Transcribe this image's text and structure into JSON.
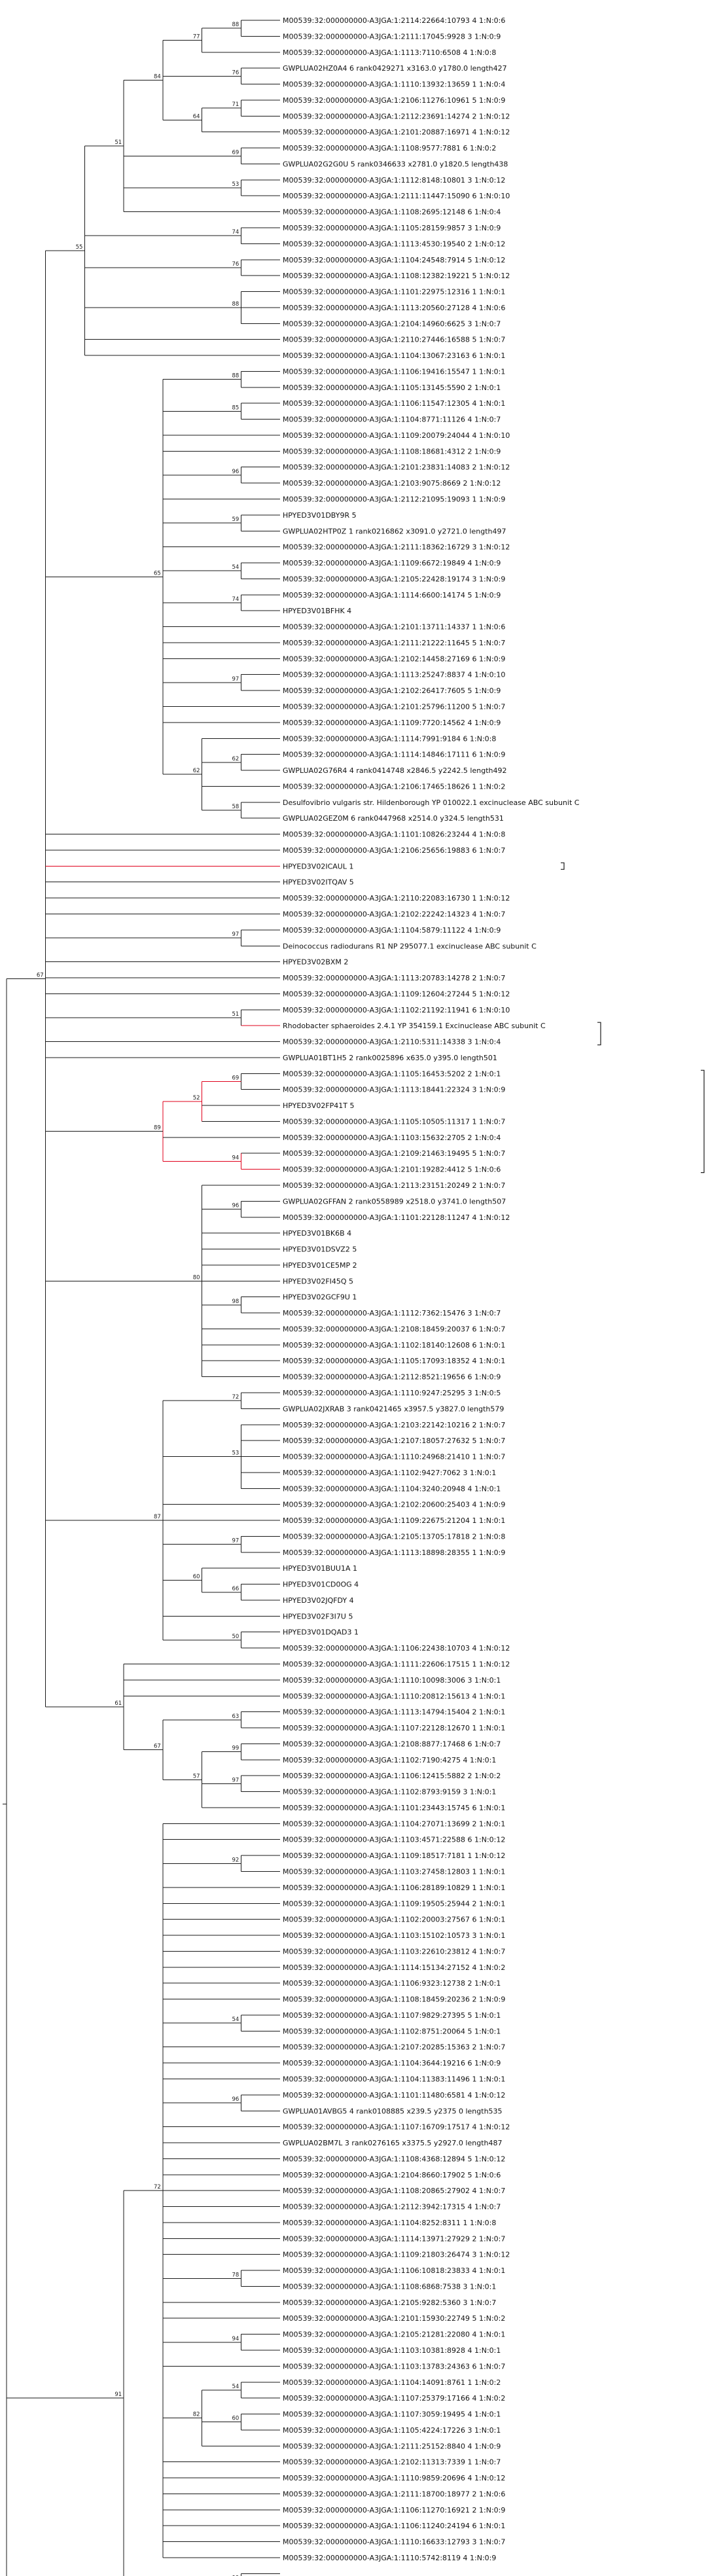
{
  "tree": {
    "newick": "(((((((((((M0:1,M1:1)88:1,M2:2)77:1,(GWPLUA02HZ0A4:1)76:1,((M3:1,M4:1)71:1,M5:1)64:1)84:1,(M6:1,GWPLUA02G2G0U:1)69:1,(M7:1,M8:1)53:1,M9:1)51:1,((M10:1,M11:1)74:1,(M12:1,M13:1)76:1,M14:1,(M15:1,M16:1,M17:1)88:1,M18:1,M19:1)55:1,(M20:1,M21:1,(M22:1,M23:1)88:1,(M24:1,M25:1)85:1,M26:1,M27:1,(M28:1,M29:1)96:1,M30:1,(M31:1,M32:1)59:1,M33:1,(M34:1,HPYED3V01DBY9R:1)54:1,(GWPLUA02HTP0Z:1,M35:1)74:1,M36:1,M37:1,HPYED3V01BFHK4:1,M38:1,(M39:1,M40:1)97:1,M41:1,M42:1,(M43:1,(M44:1,M45:1)62:1,M46:1,(M47:1,M48:1)58:1)62:1)65:1,GWPLUA02G76R4:1,M49:1,Desulfovibrio:1,GWPLUA02GEZ0M:1,M50:1,M51:1,(HPYED3V02ICAUL:1,HPYED3V02ITQAV:1)97:1,M52:1,M53:1,(M54:1,Deinococcus:1)51:1,HPYED3V02BXM2:1,M55:1,M56:1,(((M57:1,Rhodobacter:1)69:1,M58:1,GWPLUA01BT1H5:1)52:1,M59:1,(M60:1,HPYED3V02FP41T:1)94:1)89:1,(M61:1,(M62:1,M63:1)96:1,M64:1,M65:1,M66:1,GWPLUA02GFFAN:1,(M67:1,HPYED3V01BK6B:1)98:1,HPYED3V01DSVZ2:1,HPYED3V01CE5MP:1,HPYED3V02FI45Q:1,HPYED3V02GCF9U:1)80:1,((M68:1,M69:1)72:1,(M70:1,M71:1,M72:1,M73:1,M74:1)53:1,GWPLUA02JXRAB:1,M75:1,M76:1,(M77:1,M78:1)97:1,(M79:1,(M80:1,M81:1)66:1)60:1,M82:1,M83:1,(M84:1,M85:1)50:1)87:1,(M86:1,HPYED3V01BUU1A:1,HPYED3V01CD0OG:1,HPYED3V02JQFDY:1,(HPYED3V02F3I7U:1,HPYED3V01DQAD3:1)63:1)61:1)67:1",
    "edges_note": "tree topology summarized; see rows/brackets"
  },
  "labels": [
    "M00539:32:000000000-A3JGA:1:2114:22664:10793 4 1:N:0:6",
    "M00539:32:000000000-A3JGA:1:2111:17045:9928 3 1:N:0:9",
    "M00539:32:000000000-A3JGA:1:1113:7110:6508 4 1:N:0:8",
    "GWPLUA02HZ0A4 6 rank0429271 x3163.0 y1780.0 length427",
    "M00539:32:000000000-A3JGA:1:1110:13932:13659 1 1:N:0:4",
    "M00539:32:000000000-A3JGA:1:2106:11276:10961 5 1:N:0:9",
    "M00539:32:000000000-A3JGA:1:2112:23691:14274 2 1:N:0:12",
    "M00539:32:000000000-A3JGA:1:2101:20887:16971 4 1:N:0:12",
    "M00539:32:000000000-A3JGA:1:1108:9577:7881 6 1:N:0:2",
    "GWPLUA02G2G0U 5 rank0346633 x2781.0 y1820.5 length438",
    "M00539:32:000000000-A3JGA:1:1112:8148:10801 3 1:N:0:12",
    "M00539:32:000000000-A3JGA:1:2111:11447:15090 6 1:N:0:10",
    "M00539:32:000000000-A3JGA:1:1108:2695:12148 6 1:N:0:4",
    "M00539:32:000000000-A3JGA:1:1105:28159:9857 3 1:N:0:9",
    "M00539:32:000000000-A3JGA:1:1113:4530:19540 2 1:N:0:12",
    "M00539:32:000000000-A3JGA:1:1104:24548:7914 5 1:N:0:12",
    "M00539:32:000000000-A3JGA:1:1108:12382:19221 5 1:N:0:12",
    "M00539:32:000000000-A3JGA:1:1101:22975:12316 1 1:N:0:1",
    "M00539:32:000000000-A3JGA:1:1113:20560:27128 4 1:N:0:6",
    "M00539:32:000000000-A3JGA:1:2104:14960:6625 3 1:N:0:7",
    "M00539:32:000000000-A3JGA:1:2110:27446:16588 5 1:N:0:7",
    "M00539:32:000000000-A3JGA:1:1104:13067:23163 6 1:N:0:1",
    "M00539:32:000000000-A3JGA:1:1106:19416:15547 1 1:N:0:1",
    "M00539:32:000000000-A3JGA:1:1105:13145:5590 2 1:N:0:1",
    "M00539:32:000000000-A3JGA:1:1106:11547:12305 4 1:N:0:1",
    "M00539:32:000000000-A3JGA:1:1104:8771:11126 4 1:N:0:7",
    "M00539:32:000000000-A3JGA:1:1109:20079:24044 4 1:N:0:10",
    "M00539:32:000000000-A3JGA:1:1108:18681:4312 2 1:N:0:9",
    "M00539:32:000000000-A3JGA:1:2101:23831:14083 2 1:N:0:12",
    "M00539:32:000000000-A3JGA:1:2103:9075:8669 2 1:N:0:12",
    "M00539:32:000000000-A3JGA:1:2112:21095:19093 1 1:N:0:9",
    "HPYED3V01DBY9R 5",
    "GWPLUA02HTP0Z 1 rank0216862 x3091.0 y2721.0 length497",
    "M00539:32:000000000-A3JGA:1:2111:18362:16729 3 1:N:0:12",
    "M00539:32:000000000-A3JGA:1:1109:6672:19849 4 1:N:0:9",
    "M00539:32:000000000-A3JGA:1:2105:22428:19174 3 1:N:0:9",
    "M00539:32:000000000-A3JGA:1:1114:6600:14174 5 1:N:0:9",
    "HPYED3V01BFHK 4",
    "M00539:32:000000000-A3JGA:1:2101:13711:14337 1 1:N:0:6",
    "M00539:32:000000000-A3JGA:1:2111:21222:11645 5 1:N:0:7",
    "M00539:32:000000000-A3JGA:1:2102:14458:27169 6 1:N:0:9",
    "M00539:32:000000000-A3JGA:1:1113:25247:8837 4 1:N:0:10",
    "M00539:32:000000000-A3JGA:1:2102:26417:7605 5 1:N:0:9",
    "M00539:32:000000000-A3JGA:1:2101:25796:11200 5 1:N:0:7",
    "M00539:32:000000000-A3JGA:1:1109:7720:14562 4 1:N:0:9",
    "M00539:32:000000000-A3JGA:1:1114:7991:9184 6 1:N:0:8",
    "M00539:32:000000000-A3JGA:1:1114:14846:17111 6 1:N:0:9",
    "GWPLUA02G76R4 4 rank0414748 x2846.5 y2242.5 length492",
    "M00539:32:000000000-A3JGA:1:2106:17465:18626 1 1:N:0:2",
    "Desulfovibrio vulgaris str. Hildenborough YP 010022.1 excinuclease ABC subunit C",
    "GWPLUA02GEZ0M 6 rank0447968 x2514.0 y324.5 length531",
    "M00539:32:000000000-A3JGA:1:1101:10826:23244 4 1:N:0:8",
    "M00539:32:000000000-A3JGA:1:2106:25656:19883 6 1:N:0:7",
    "HPYED3V02ICAUL 1",
    "HPYED3V02ITQAV 5",
    "M00539:32:000000000-A3JGA:1:2110:22083:16730 1 1:N:0:12",
    "M00539:32:000000000-A3JGA:1:2102:22242:14323 4 1:N:0:7",
    "M00539:32:000000000-A3JGA:1:1104:5879:11122 4 1:N:0:9",
    "Deinococcus radiodurans R1 NP 295077.1 excinuclease ABC subunit C",
    "HPYED3V02BXM 2",
    "M00539:32:000000000-A3JGA:1:1113:20783:14278 2 1:N:0:7",
    "M00539:32:000000000-A3JGA:1:1109:12604:27244 5 1:N:0:12",
    "M00539:32:000000000-A3JGA:1:1102:21192:11941 6 1:N:0:10",
    "Rhodobacter sphaeroides 2.4.1 YP 354159.1 Excinuclease ABC subunit C",
    "M00539:32:000000000-A3JGA:1:2110:5311:14338 3 1:N:0:4",
    "GWPLUA01BT1H5 2 rank0025896 x635.0 y395.0 length501",
    "M00539:32:000000000-A3JGA:1:1105:16453:5202 2 1:N:0:1",
    "M00539:32:000000000-A3JGA:1:1113:18441:22324 3 1:N:0:9",
    "HPYED3V02FP41T 5",
    "M00539:32:000000000-A3JGA:1:1105:10505:11317 1 1:N:0:7",
    "M00539:32:000000000-A3JGA:1:1103:15632:2705 2 1:N:0:4",
    "M00539:32:000000000-A3JGA:1:2109:21463:19495 5 1:N:0:7",
    "M00539:32:000000000-A3JGA:1:2101:19282:4412 5 1:N:0:6",
    "M00539:32:000000000-A3JGA:1:2113:23151:20249 2 1:N:0:7",
    "GWPLUA02GFFAN 2 rank0558989 x2518.0 y3741.0 length507",
    "M00539:32:000000000-A3JGA:1:1101:22128:11247 4 1:N:0:12",
    "HPYED3V01BK6B 4",
    "HPYED3V01DSVZ2 5",
    "HPYED3V01CE5MP 2",
    "HPYED3V02FI45Q 5",
    "HPYED3V02GCF9U 1",
    "M00539:32:000000000-A3JGA:1:1112:7362:15476 3 1:N:0:7",
    "M00539:32:000000000-A3JGA:1:2108:18459:20037 6 1:N:0:7",
    "M00539:32:000000000-A3JGA:1:1102:18140:12608 6 1:N:0:1",
    "M00539:32:000000000-A3JGA:1:1105:17093:18352 4 1:N:0:1",
    "M00539:32:000000000-A3JGA:1:2112:8521:19656 6 1:N:0:9",
    "M00539:32:000000000-A3JGA:1:1110:9247:25295 3 1:N:0:5",
    "GWPLUA02JXRAB 3 rank0421465 x3957.5 y3827.0 length579",
    "M00539:32:000000000-A3JGA:1:2103:22142:10216 2 1:N:0:7",
    "M00539:32:000000000-A3JGA:1:2107:18057:27632 5 1:N:0:7",
    "M00539:32:000000000-A3JGA:1:1110:24968:21410 1 1:N:0:7",
    "M00539:32:000000000-A3JGA:1:1102:9427:7062 3 1:N:0:1",
    "M00539:32:000000000-A3JGA:1:1104:3240:20948 4 1:N:0:1",
    "M00539:32:000000000-A3JGA:1:2102:20600:25403 4 1:N:0:9",
    "M00539:32:000000000-A3JGA:1:1109:22675:21204 1 1:N:0:1",
    "M00539:32:000000000-A3JGA:1:2105:13705:17818 2 1:N:0:8",
    "M00539:32:000000000-A3JGA:1:1113:18898:28355 1 1:N:0:9",
    "HPYED3V01BUU1A 1",
    "HPYED3V01CD0OG 4",
    "HPYED3V02JQFDY 4",
    "HPYED3V02F3I7U 5",
    "HPYED3V01DQAD3 1",
    "M00539:32:000000000-A3JGA:1:1106:22438:10703 4 1:N:0:12",
    "M00539:32:000000000-A3JGA:1:1111:22606:17515 1 1:N:0:12",
    "M00539:32:000000000-A3JGA:1:1110:10098:3006 3 1:N:0:1",
    "M00539:32:000000000-A3JGA:1:1110:20812:15613 4 1:N:0:1",
    "M00539:32:000000000-A3JGA:1:1113:14794:15404 2 1:N:0:1",
    "M00539:32:000000000-A3JGA:1:1107:22128:12670 1 1:N:0:1",
    "M00539:32:000000000-A3JGA:1:2108:8877:17468 6 1:N:0:7",
    "M00539:32:000000000-A3JGA:1:1102:7190:4275 4 1:N:0:1",
    "M00539:32:000000000-A3JGA:1:1106:12415:5882 2 1:N:0:2",
    "M00539:32:000000000-A3JGA:1:1102:8793:9159 3 1:N:0:1",
    "M00539:32:000000000-A3JGA:1:1101:23443:15745 6 1:N:0:1",
    "M00539:32:000000000-A3JGA:1:1104:27071:13699 2 1:N:0:1",
    "M00539:32:000000000-A3JGA:1:1103:4571:22588 6 1:N:0:12",
    "M00539:32:000000000-A3JGA:1:1109:18517:7181 1 1:N:0:12",
    "M00539:32:000000000-A3JGA:1:1103:27458:12803 1 1:N:0:1",
    "M00539:32:000000000-A3JGA:1:1106:28189:10829 1 1:N:0:1",
    "M00539:32:000000000-A3JGA:1:1109:19505:25944 2 1:N:0:1",
    "M00539:32:000000000-A3JGA:1:1102:20003:27567 6 1:N:0:1",
    "M00539:32:000000000-A3JGA:1:1103:15102:10573 3 1:N:0:1",
    "M00539:32:000000000-A3JGA:1:1103:22610:23812 4 1:N:0:7",
    "M00539:32:000000000-A3JGA:1:1114:15134:27152 4 1:N:0:2",
    "M00539:32:000000000-A3JGA:1:1106:9323:12738 2 1:N:0:1",
    "M00539:32:000000000-A3JGA:1:1108:18459:20236 2 1:N:0:9",
    "M00539:32:000000000-A3JGA:1:1107:9829:27395 5 1:N:0:1",
    "M00539:32:000000000-A3JGA:1:1102:8751:20064 5 1:N:0:1",
    "M00539:32:000000000-A3JGA:1:2107:20285:15363 2 1:N:0:7",
    "M00539:32:000000000-A3JGA:1:1104:3644:19216 6 1:N:0:9",
    "M00539:32:000000000-A3JGA:1:1104:11383:11496 1 1:N:0:1",
    "M00539:32:000000000-A3JGA:1:1101:11480:6581 4 1:N:0:12",
    "GWPLUA01AVBG5 4 rank0108885 x239.5 y2375 0 length535",
    "M00539:32:000000000-A3JGA:1:1107:16709:17517 4 1:N:0:12",
    "GWPLUA02BM7L 3 rank0276165 x3375.5 y2927.0 length487",
    "M00539:32:000000000-A3JGA:1:1108:4368:12894 5 1:N:0:12",
    "M00539:32:000000000-A3JGA:1:2104:8660:17902 5 1:N:0:6",
    "M00539:32:000000000-A3JGA:1:1108:20865:27902 4 1:N:0:7",
    "M00539:32:000000000-A3JGA:1:2112:3942:17315 4 1:N:0:7",
    "M00539:32:000000000-A3JGA:1:1104:8252:8311 1 1:N:0:8",
    "M00539:32:000000000-A3JGA:1:1114:13971:27929 2 1:N:0:7",
    "M00539:32:000000000-A3JGA:1:1109:21803:26474 3 1:N:0:12",
    "M00539:32:000000000-A3JGA:1:1106:10818:23833 4 1:N:0:1",
    "M00539:32:000000000-A3JGA:1:1108:6868:7538 3 1:N:0:1",
    "M00539:32:000000000-A3JGA:1:2105:9282:5360 3 1:N:0:7",
    "M00539:32:000000000-A3JGA:1:2101:15930:22749 5 1:N:0:2",
    "M00539:32:000000000-A3JGA:1:2105:21281:22080 4 1:N:0:1",
    "M00539:32:000000000-A3JGA:1:1103:10381:8928 4 1:N:0:1",
    "M00539:32:000000000-A3JGA:1:1103:13783:24363 6 1:N:0:7",
    "M00539:32:000000000-A3JGA:1:1104:14091:8761 1 1:N:0:2",
    "M00539:32:000000000-A3JGA:1:1107:25379:17166 4 1:N:0:2",
    "M00539:32:000000000-A3JGA:1:1107:3059:19495 4 1:N:0:1",
    "M00539:32:000000000-A3JGA:1:1105:4224:17226 3 1:N:0:1",
    "M00539:32:000000000-A3JGA:1:2111:25152:8840 4 1:N:0:9",
    "M00539:32:000000000-A3JGA:1:2102:11313:7339 1 1:N:0:7",
    "M00539:32:000000000-A3JGA:1:1110:9859:20696 4 1:N:0:12",
    "M00539:32:000000000-A3JGA:1:2111:18700:18977 2 1:N:0:6",
    "M00539:32:000000000-A3JGA:1:1106:11270:16921 2 1:N:0:9",
    "M00539:32:000000000-A3JGA:1:1106:11240:24194 6 1:N:0:1",
    "M00539:32:000000000-A3JGA:1:1110:16633:12793 3 1:N:0:7",
    "M00539:32:000000000-A3JGA:1:1110:5742:8119 4 1:N:0:9"
  ],
  "groups": [
    {
      "c": [
        0,
        1
      ],
      "b": "88"
    },
    {
      "c": [
        "g0",
        2
      ],
      "b": "77"
    },
    {
      "c": [
        3,
        4
      ],
      "b": "76"
    },
    {
      "c": [
        5,
        6
      ],
      "b": "71"
    },
    {
      "c": [
        "g3",
        7
      ],
      "b": "64"
    },
    {
      "c": [
        "g1",
        "g2",
        "g4"
      ],
      "b": "84"
    },
    {
      "c": [
        8,
        9
      ],
      "b": "69"
    },
    {
      "c": [
        10,
        11
      ],
      "b": "53"
    },
    {
      "c": [
        "g5",
        "g6",
        "g7",
        12
      ],
      "b": "51"
    },
    {
      "c": [
        13,
        14
      ],
      "b": "74"
    },
    {
      "c": [
        15,
        16
      ],
      "b": "76"
    },
    {
      "c": [
        17,
        18,
        19
      ],
      "b": "88"
    },
    {
      "c": [
        "g8",
        "g9",
        "g10",
        20,
        "g11",
        21
      ],
      "b": "55"
    },
    {
      "c": [
        22,
        23
      ],
      "b": "88"
    },
    {
      "c": [
        24,
        25
      ],
      "b": "85"
    },
    {
      "c": [
        28,
        29
      ],
      "b": "96"
    },
    {
      "c": [
        31,
        32
      ],
      "b": "59"
    },
    {
      "c": [
        34,
        35
      ],
      "b": "54"
    },
    {
      "c": [
        36,
        37
      ],
      "b": "74"
    },
    {
      "c": [
        41,
        42
      ],
      "b": "97"
    },
    {
      "c": [
        46,
        47
      ],
      "b": "62"
    },
    {
      "c": [
        49,
        50
      ],
      "b": "58"
    },
    {
      "c": [
        45,
        "g20",
        48,
        "g21"
      ],
      "b": "62"
    },
    {
      "c": [
        "g13",
        "g14",
        26,
        27,
        "g15",
        30,
        "g16",
        33,
        "g17",
        "g18",
        38,
        39,
        40,
        "g19",
        43,
        44,
        "g22"
      ],
      "b": "65"
    },
    {
      "c": [
        57,
        58
      ],
      "b": "97"
    },
    {
      "c": [
        62,
        63
      ],
      "b": "51"
    },
    {
      "c": [
        66,
        67
      ],
      "b": "69"
    },
    {
      "c": [
        "g26",
        68,
        69
      ],
      "b": "52"
    },
    {
      "c": [
        71,
        72
      ],
      "b": "94"
    },
    {
      "c": [
        "g27",
        70,
        "g28"
      ],
      "b": "89"
    },
    {
      "c": [
        74,
        75
      ],
      "b": "96"
    },
    {
      "c": [
        80,
        81
      ],
      "b": "98"
    },
    {
      "c": [
        73,
        "g30",
        76,
        77,
        78,
        79,
        "g31",
        82,
        83,
        84,
        85
      ],
      "b": "80"
    },
    {
      "c": [
        86,
        87
      ],
      "b": "72"
    },
    {
      "c": [
        88,
        89,
        90,
        91,
        92
      ],
      "b": "53"
    },
    {
      "c": [
        95,
        96
      ],
      "b": "97"
    },
    {
      "c": [
        98,
        99
      ],
      "b": "66"
    },
    {
      "c": [
        97,
        "g36"
      ],
      "b": "60"
    },
    {
      "c": [
        101,
        102
      ],
      "b": "50"
    },
    {
      "c": [
        "g33",
        "g34",
        93,
        94,
        "g35",
        "g37",
        100,
        "g38"
      ],
      "b": "87"
    },
    {
      "c": [
        106,
        107
      ],
      "b": "63"
    },
    {
      "c": [
        108,
        109
      ],
      "b": "99"
    },
    {
      "c": [
        110,
        111
      ],
      "b": "97"
    },
    {
      "c": [
        "g41",
        112,
        "g42"
      ],
      "b": "57"
    },
    {
      "c": [
        "g40",
        "g43"
      ],
      "b": "67"
    },
    {
      "c": [
        103,
        104,
        105,
        "g44"
      ],
      "b": "61"
    },
    {
      "c": [
        115,
        116
      ],
      "b": "92"
    },
    {
      "c": [
        125,
        126
      ],
      "b": "54"
    },
    {
      "c": [
        130,
        131
      ],
      "b": "96"
    },
    {
      "c": [
        141,
        142
      ],
      "b": "78"
    },
    {
      "c": [
        145,
        146
      ],
      "b": "94"
    },
    {
      "c": [
        148,
        149
      ],
      "b": "54"
    },
    {
      "c": [
        150,
        151
      ],
      "b": "60"
    },
    {
      "c": [
        "g51",
        "g52",
        152
      ],
      "b": "82"
    },
    {
      "c": [
        113,
        114,
        "g46",
        117,
        118,
        119,
        120,
        121,
        122,
        123,
        124,
        "g47",
        127,
        128,
        129,
        "g48",
        132,
        133,
        134,
        135,
        136,
        137,
        138,
        139,
        140,
        "g49",
        143,
        144,
        "g50",
        147,
        "g53",
        153,
        154,
        155,
        156,
        157,
        158,
        159
      ],
      "b": "72"
    },
    {
      "c": [
        160,
        161
      ],
      "b": "99"
    },
    {
      "c": [
        "g54",
        "g55",
        162
      ],
      "b": "91"
    },
    {
      "c": [
        163,
        164
      ],
      "b": "78"
    },
    {
      "c": [
        "g12",
        "g23",
        51,
        52,
        53,
        54,
        55,
        56,
        "g24",
        59,
        60,
        61,
        "g25",
        64,
        65,
        "g29",
        "g32",
        "g39",
        "g45"
      ],
      "b": "67"
    },
    {
      "c": [
        "g58",
        "g56",
        "g57"
      ],
      "b": ""
    }
  ],
  "red_edges": [
    53,
    63,
    67,
    72
  ],
  "brackets": [
    {
      "from": 53,
      "to": 53
    },
    {
      "from": 63,
      "to": 64
    },
    {
      "from": 66,
      "to": 72
    }
  ],
  "colors": {
    "line": "#1a1a1a",
    "highlight": "#e0001b",
    "text": "#111111"
  }
}
